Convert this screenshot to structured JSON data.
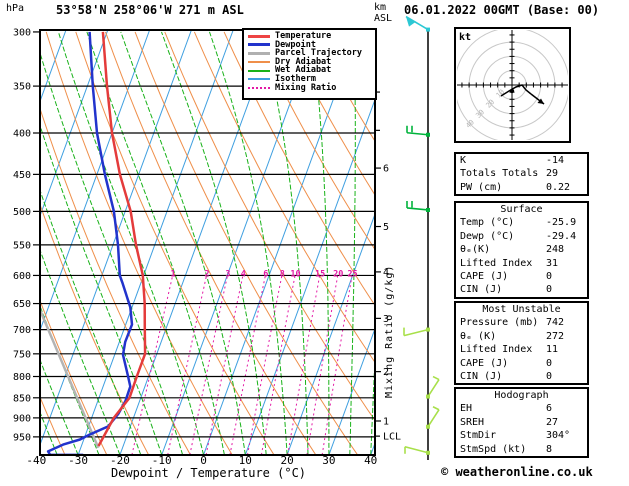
{
  "header": {
    "pressure_unit": "hPa",
    "title": "53°58'N 258°06'W 271 m ASL",
    "altitude_unit": "km\nASL",
    "datetime": "06.01.2022 00GMT (Base: 00)"
  },
  "legend": {
    "items": [
      {
        "label": "Temperature",
        "color": "#ee4444",
        "weight": 3,
        "dash": "solid"
      },
      {
        "label": "Dewpoint",
        "color": "#2233cc",
        "weight": 3,
        "dash": "solid"
      },
      {
        "label": "Parcel Trajectory",
        "color": "#b0b0b0",
        "weight": 3,
        "dash": "solid"
      },
      {
        "label": "Dry Adiabat",
        "color": "#ef8f4a",
        "weight": 2,
        "dash": "solid"
      },
      {
        "label": "Wet Adiabat",
        "color": "#19b219",
        "weight": 2,
        "dash": "solid"
      },
      {
        "label": "Isotherm",
        "color": "#3f9fe0",
        "weight": 2,
        "dash": "solid"
      },
      {
        "label": "Mixing Ratio",
        "color": "#e319a5",
        "weight": 2,
        "dash": "dotted"
      }
    ]
  },
  "chart_data": {
    "type": "skewt-logp",
    "pressure_axis": {
      "unit": "hPa",
      "ticks": [
        300,
        350,
        400,
        450,
        500,
        550,
        600,
        650,
        700,
        750,
        800,
        850,
        900,
        950
      ],
      "range": [
        300,
        1000
      ]
    },
    "temp_axis": {
      "label": "Dewpoint / Temperature (°C)",
      "ticks": [
        -40,
        -30,
        -20,
        -10,
        0,
        10,
        20,
        30,
        40
      ],
      "range": [
        -40,
        40
      ]
    },
    "km_axis": {
      "label": "km ASL",
      "ticks": [
        {
          "label": "1",
          "p": 908
        },
        {
          "label": "2",
          "p": 789
        },
        {
          "label": "3",
          "p": 678
        },
        {
          "label": "4",
          "p": 594
        },
        {
          "label": "5",
          "p": 522
        },
        {
          "label": "6",
          "p": 442
        }
      ],
      "minor_ticks_p": [
        356,
        397
      ],
      "lcl": {
        "label": "LCL",
        "p": 948
      }
    },
    "mixing_ratio": {
      "axis_label": "Mixing Ratio (g/kg)",
      "values": [
        1,
        2,
        3,
        4,
        6,
        8,
        10,
        15,
        20,
        25
      ],
      "label_pressure": 598,
      "top_pressure": 590
    },
    "temperature_profile": [
      [
        300,
        -61
      ],
      [
        350,
        -55.3
      ],
      [
        400,
        -50
      ],
      [
        450,
        -44.5
      ],
      [
        500,
        -38.7
      ],
      [
        550,
        -34.5
      ],
      [
        600,
        -30.2
      ],
      [
        650,
        -27.3
      ],
      [
        700,
        -25
      ],
      [
        750,
        -22.8
      ],
      [
        800,
        -22.8
      ],
      [
        850,
        -22.7
      ],
      [
        900,
        -24.7
      ],
      [
        950,
        -25.5
      ],
      [
        975,
        -25.9
      ]
    ],
    "dewpoint_profile": [
      [
        300,
        -64.2
      ],
      [
        350,
        -58.7
      ],
      [
        400,
        -53.6
      ],
      [
        450,
        -48.1
      ],
      [
        500,
        -42.7
      ],
      [
        550,
        -38.8
      ],
      [
        600,
        -35.7
      ],
      [
        612,
        -34.5
      ],
      [
        657,
        -30.4
      ],
      [
        690,
        -28.5
      ],
      [
        725,
        -28.6
      ],
      [
        752,
        -28
      ],
      [
        800,
        -24.9
      ],
      [
        823,
        -23.5
      ],
      [
        858,
        -23.4
      ],
      [
        890,
        -24
      ],
      [
        922,
        -25.3
      ],
      [
        943,
        -28.9
      ],
      [
        957,
        -30.9
      ],
      [
        971,
        -34.5
      ],
      [
        990,
        -37.5
      ],
      [
        1000,
        -36.7
      ],
      [
        1000,
        -28.8
      ]
    ],
    "parcel_profile": [
      [
        660,
        -52
      ],
      [
        980,
        -25.8
      ]
    ],
    "wind_barbs": [
      {
        "p": 298,
        "type": "pennant",
        "color": "#2cc8d4"
      },
      {
        "p": 402,
        "type": "left2",
        "color": "#00b33c"
      },
      {
        "p": 498,
        "type": "left2",
        "color": "#00b33c"
      },
      {
        "p": 700,
        "type": "downleft1",
        "color": "#a8e04a"
      },
      {
        "p": 847,
        "type": "upright",
        "color": "#a8e04a"
      },
      {
        "p": 923,
        "type": "upright",
        "color": "#a8e04a"
      },
      {
        "p": 994,
        "type": "upleft1",
        "color": "#a8e04a"
      }
    ],
    "colors": {
      "temperature": "#e43b3b",
      "dewpoint": "#2233cc",
      "parcel": "#b4b4b4",
      "dry_adiabat": "#ef8f4a",
      "wet_adiabat": "#19b219",
      "isotherm": "#3f9fe0",
      "mixing_ratio": "#e319a5",
      "grid": "#000000"
    }
  },
  "hodograph": {
    "unit_label": "kt",
    "ring_values": [
      10,
      20,
      30,
      40
    ],
    "trace": [
      [
        501,
        96
      ],
      [
        509,
        91
      ],
      [
        516,
        87
      ],
      [
        522,
        85
      ],
      [
        526,
        90
      ],
      [
        531,
        94
      ]
    ],
    "arrow_end": [
      544,
      104
    ]
  },
  "tables": [
    {
      "title": null,
      "rows": [
        [
          "K",
          "-14"
        ],
        [
          "Totals Totals",
          "29"
        ],
        [
          "PW (cm)",
          "0.22"
        ]
      ]
    },
    {
      "title": "Surface",
      "rows": [
        [
          "Temp (°C)",
          "-25.9"
        ],
        [
          "Dewp (°C)",
          "-29.4"
        ],
        [
          "θₑ(K)",
          "248"
        ],
        [
          "Lifted Index",
          "31"
        ],
        [
          "CAPE (J)",
          "0"
        ],
        [
          "CIN (J)",
          "0"
        ]
      ]
    },
    {
      "title": "Most Unstable",
      "rows": [
        [
          "Pressure (mb)",
          "742"
        ],
        [
          "θₑ (K)",
          "272"
        ],
        [
          "Lifted Index",
          "11"
        ],
        [
          "CAPE (J)",
          "0"
        ],
        [
          "CIN (J)",
          "0"
        ]
      ]
    },
    {
      "title": "Hodograph",
      "rows": [
        [
          "EH",
          "6"
        ],
        [
          "SREH",
          "27"
        ],
        [
          "StmDir",
          "304°"
        ],
        [
          "StmSpd (kt)",
          "8"
        ]
      ]
    }
  ],
  "footer": {
    "copyright": "© weatheronline.co.uk"
  }
}
